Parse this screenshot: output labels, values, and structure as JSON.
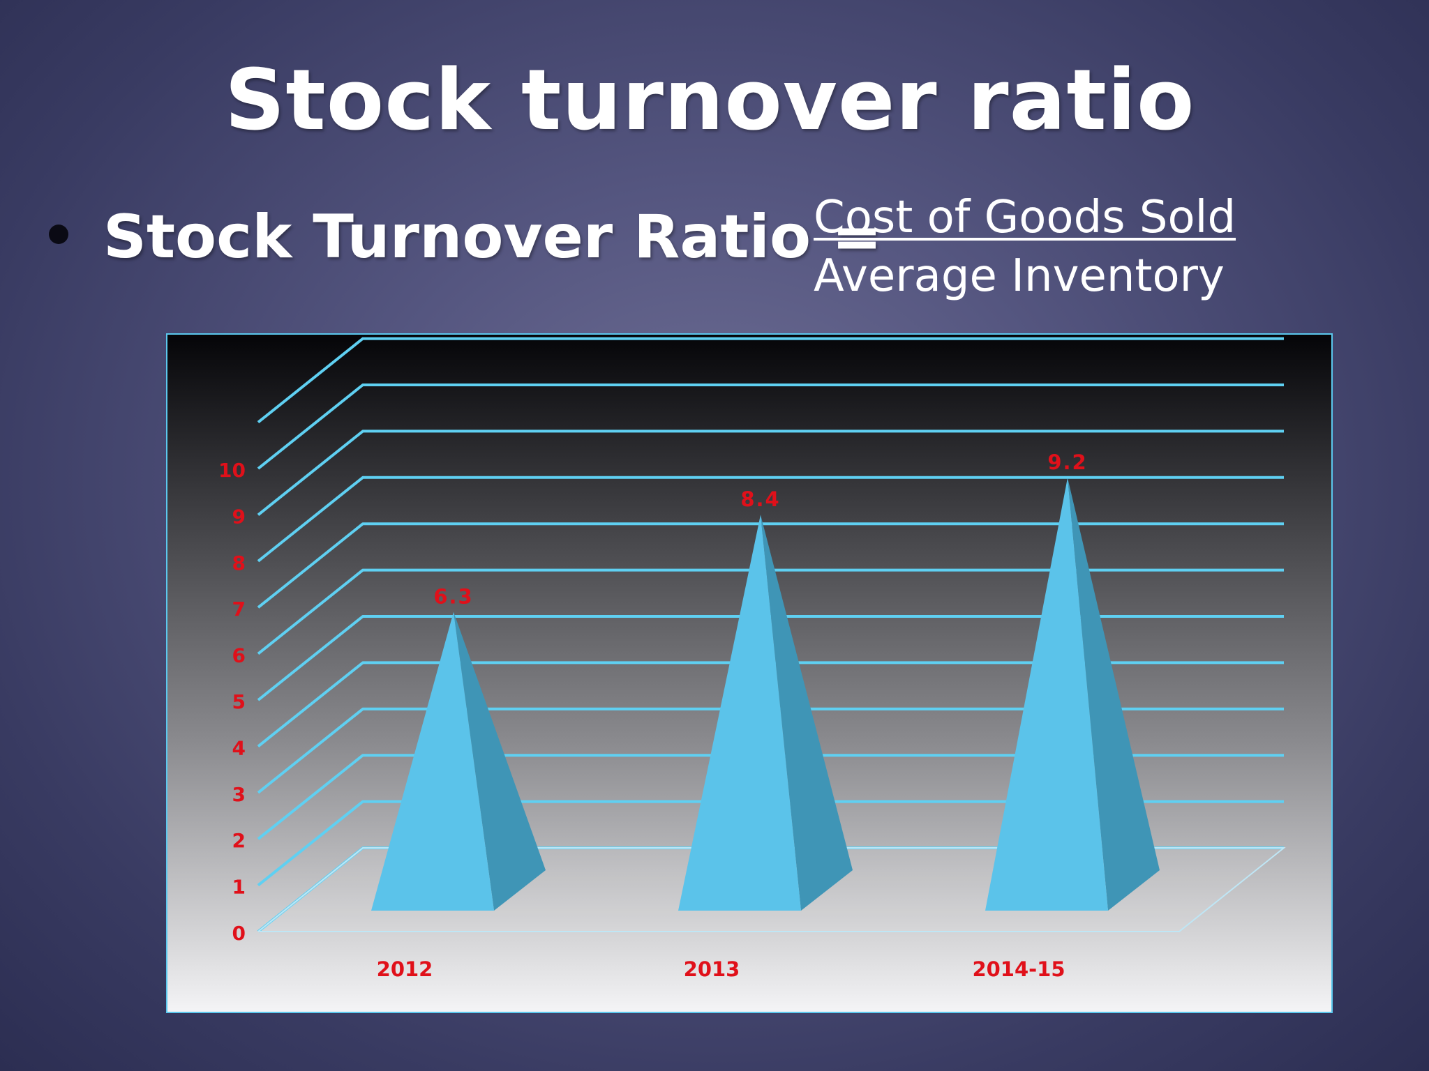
{
  "slide": {
    "title": "Stock turnover ratio",
    "formula": {
      "label": "Stock Turnover Ratio =",
      "numerator": "Cost of Goods Sold",
      "denominator": "Average Inventory"
    }
  },
  "colors": {
    "pyramid_front": "#5bc3ea",
    "pyramid_side": "#3f95b6",
    "gridline": "#5fd0f2",
    "label_red": "#e0101a"
  },
  "chart_data": {
    "type": "bar",
    "shape": "3d-pyramid",
    "title": "",
    "xlabel": "",
    "ylabel": "",
    "categories": [
      "2012",
      "2013",
      "2014-15"
    ],
    "series": [
      {
        "values": [
          6.3,
          8.4,
          9.2
        ]
      }
    ],
    "data_labels": [
      "6.3",
      "8.4",
      "9.2"
    ],
    "yticks": [
      "0",
      "1",
      "2",
      "3",
      "4",
      "5",
      "6",
      "7",
      "8",
      "9",
      "10"
    ],
    "ylim": [
      0,
      10
    ],
    "grid": true,
    "legend": "none"
  }
}
